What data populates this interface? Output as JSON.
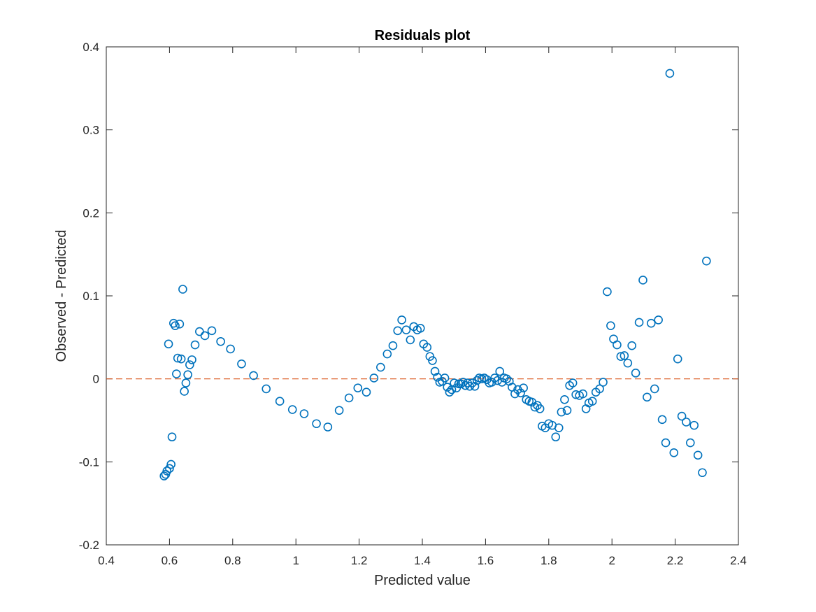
{
  "chart_data": {
    "type": "scatter",
    "title": "Residuals plot",
    "xlabel": "Predicted value",
    "ylabel": "Observed - Predicted",
    "xlim": [
      0.4,
      2.4
    ],
    "ylim": [
      -0.2,
      0.4
    ],
    "xticks": [
      0.4,
      0.6,
      0.8,
      1,
      1.2,
      1.4,
      1.6,
      1.8,
      2,
      2.2,
      2.4
    ],
    "xtick_labels": [
      "0.4",
      "0.6",
      "0.8",
      "1",
      "1.2",
      "1.4",
      "1.6",
      "1.8",
      "2",
      "2.2",
      "2.4"
    ],
    "yticks": [
      -0.2,
      -0.1,
      0,
      0.1,
      0.2,
      0.3,
      0.4
    ],
    "ytick_labels": [
      "-0.2",
      "-0.1",
      "0",
      "0.1",
      "0.2",
      "0.3",
      "0.4"
    ],
    "grid": false,
    "box": true,
    "marker": "open-circle",
    "marker_color": "#0072BD",
    "reference_line": {
      "y": 0,
      "style": "dashed",
      "color": "#D95319"
    },
    "series": [
      {
        "points": [
          [
            0.583,
            -0.117
          ],
          [
            0.588,
            -0.115
          ],
          [
            0.592,
            -0.111
          ],
          [
            0.597,
            0.042
          ],
          [
            0.6,
            -0.108
          ],
          [
            0.605,
            -0.103
          ],
          [
            0.608,
            -0.07
          ],
          [
            0.613,
            0.067
          ],
          [
            0.618,
            0.064
          ],
          [
            0.622,
            0.006
          ],
          [
            0.626,
            0.025
          ],
          [
            0.632,
            0.066
          ],
          [
            0.637,
            0.024
          ],
          [
            0.642,
            0.108
          ],
          [
            0.647,
            -0.015
          ],
          [
            0.652,
            -0.005
          ],
          [
            0.658,
            0.005
          ],
          [
            0.664,
            0.017
          ],
          [
            0.671,
            0.023
          ],
          [
            0.681,
            0.041
          ],
          [
            0.695,
            0.057
          ],
          [
            0.712,
            0.052
          ],
          [
            0.734,
            0.058
          ],
          [
            0.762,
            0.045
          ],
          [
            0.793,
            0.036
          ],
          [
            0.828,
            0.018
          ],
          [
            0.866,
            0.004
          ],
          [
            0.906,
            -0.012
          ],
          [
            0.949,
            -0.027
          ],
          [
            0.989,
            -0.037
          ],
          [
            1.026,
            -0.042
          ],
          [
            1.065,
            -0.054
          ],
          [
            1.101,
            -0.058
          ],
          [
            1.137,
            -0.038
          ],
          [
            1.168,
            -0.023
          ],
          [
            1.196,
            -0.011
          ],
          [
            1.223,
            -0.016
          ],
          [
            1.247,
            0.001
          ],
          [
            1.268,
            0.014
          ],
          [
            1.289,
            0.03
          ],
          [
            1.307,
            0.04
          ],
          [
            1.322,
            0.058
          ],
          [
            1.335,
            0.071
          ],
          [
            1.349,
            0.059
          ],
          [
            1.362,
            0.047
          ],
          [
            1.373,
            0.063
          ],
          [
            1.384,
            0.059
          ],
          [
            1.394,
            0.061
          ],
          [
            1.404,
            0.042
          ],
          [
            1.415,
            0.038
          ],
          [
            1.424,
            0.027
          ],
          [
            1.432,
            0.022
          ],
          [
            1.44,
            0.009
          ],
          [
            1.448,
            0.002
          ],
          [
            1.455,
            -0.004
          ],
          [
            1.463,
            -0.003
          ],
          [
            1.471,
            0.001
          ],
          [
            1.479,
            -0.01
          ],
          [
            1.486,
            -0.016
          ],
          [
            1.493,
            -0.013
          ],
          [
            1.501,
            -0.005
          ],
          [
            1.508,
            -0.011
          ],
          [
            1.515,
            -0.006
          ],
          [
            1.522,
            -0.006
          ],
          [
            1.529,
            -0.004
          ],
          [
            1.536,
            -0.008
          ],
          [
            1.543,
            -0.005
          ],
          [
            1.55,
            -0.009
          ],
          [
            1.558,
            -0.005
          ],
          [
            1.566,
            -0.009
          ],
          [
            1.573,
            -0.002
          ],
          [
            1.58,
            0.001
          ],
          [
            1.588,
            0.0
          ],
          [
            1.596,
            0.001
          ],
          [
            1.604,
            -0.001
          ],
          [
            1.612,
            -0.005
          ],
          [
            1.62,
            -0.004
          ],
          [
            1.629,
            0.001
          ],
          [
            1.638,
            -0.002
          ],
          [
            1.645,
            0.009
          ],
          [
            1.652,
            -0.004
          ],
          [
            1.659,
            0.001
          ],
          [
            1.667,
            0.0
          ],
          [
            1.675,
            -0.003
          ],
          [
            1.684,
            -0.01
          ],
          [
            1.693,
            -0.018
          ],
          [
            1.702,
            -0.013
          ],
          [
            1.711,
            -0.017
          ],
          [
            1.72,
            -0.011
          ],
          [
            1.729,
            -0.025
          ],
          [
            1.738,
            -0.027
          ],
          [
            1.747,
            -0.028
          ],
          [
            1.756,
            -0.034
          ],
          [
            1.764,
            -0.032
          ],
          [
            1.772,
            -0.036
          ],
          [
            1.779,
            -0.057
          ],
          [
            1.789,
            -0.059
          ],
          [
            1.8,
            -0.054
          ],
          [
            1.811,
            -0.056
          ],
          [
            1.822,
            -0.07
          ],
          [
            1.832,
            -0.059
          ],
          [
            1.84,
            -0.04
          ],
          [
            1.85,
            -0.025
          ],
          [
            1.858,
            -0.038
          ],
          [
            1.866,
            -0.008
          ],
          [
            1.876,
            -0.005
          ],
          [
            1.886,
            -0.019
          ],
          [
            1.897,
            -0.02
          ],
          [
            1.908,
            -0.018
          ],
          [
            1.918,
            -0.036
          ],
          [
            1.927,
            -0.029
          ],
          [
            1.938,
            -0.027
          ],
          [
            1.949,
            -0.016
          ],
          [
            1.961,
            -0.012
          ],
          [
            1.972,
            -0.004
          ],
          [
            1.985,
            0.105
          ],
          [
            1.996,
            0.064
          ],
          [
            2.005,
            0.048
          ],
          [
            2.016,
            0.041
          ],
          [
            2.028,
            0.027
          ],
          [
            2.039,
            0.028
          ],
          [
            2.05,
            0.019
          ],
          [
            2.063,
            0.04
          ],
          [
            2.075,
            0.007
          ],
          [
            2.086,
            0.068
          ],
          [
            2.098,
            0.119
          ],
          [
            2.111,
            -0.022
          ],
          [
            2.124,
            0.067
          ],
          [
            2.135,
            -0.012
          ],
          [
            2.147,
            0.071
          ],
          [
            2.159,
            -0.049
          ],
          [
            2.17,
            -0.077
          ],
          [
            2.183,
            0.368
          ],
          [
            2.196,
            -0.089
          ],
          [
            2.208,
            0.024
          ],
          [
            2.221,
            -0.045
          ],
          [
            2.235,
            -0.052
          ],
          [
            2.248,
            -0.077
          ],
          [
            2.26,
            -0.056
          ],
          [
            2.272,
            -0.092
          ],
          [
            2.286,
            -0.113
          ],
          [
            2.299,
            0.142
          ]
        ]
      }
    ]
  }
}
